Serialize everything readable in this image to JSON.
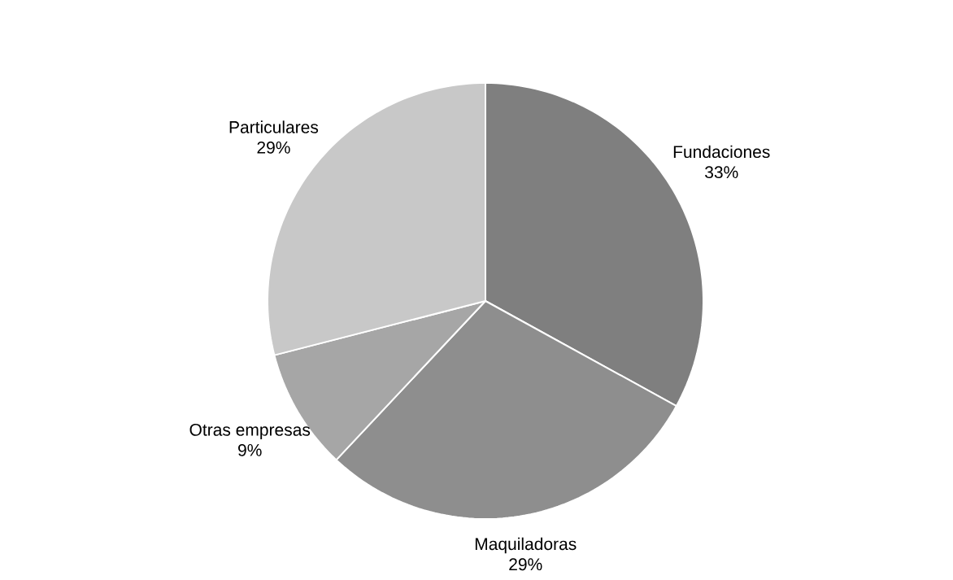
{
  "chart_data": {
    "type": "pie",
    "categories": [
      "Fundaciones",
      "Maquiladoras",
      "Otras empresas",
      "Particulares"
    ],
    "values": [
      33,
      29,
      9,
      29
    ],
    "colors": [
      "#7f7f7f",
      "#8e8e8e",
      "#a6a6a6",
      "#c8c8c8"
    ],
    "value_labels": [
      "33%",
      "29%",
      "9%",
      "29%"
    ],
    "legend": false
  }
}
